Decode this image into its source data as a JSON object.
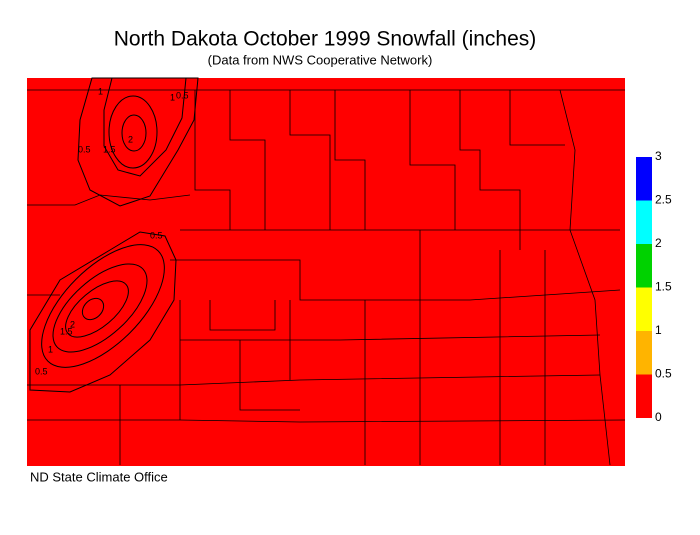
{
  "title": "North Dakota October 1999 Snowfall (inches)",
  "subtitle": "(Data from NWS Cooperative Network)",
  "credit": "ND State Climate Office",
  "legend": {
    "ticks": [
      0,
      0.5,
      1,
      1.5,
      2,
      2.5,
      3
    ],
    "colors": [
      "#ff0000",
      "#ffb400",
      "#ffff00",
      "#00d200",
      "#00ffff",
      "#0000ff"
    ]
  },
  "map": {
    "contour_labels": [
      "0.5",
      "1",
      "1.5",
      "2",
      "0.5",
      "1",
      "0.5",
      "1",
      "1.5",
      "2",
      "0.5"
    ]
  }
}
